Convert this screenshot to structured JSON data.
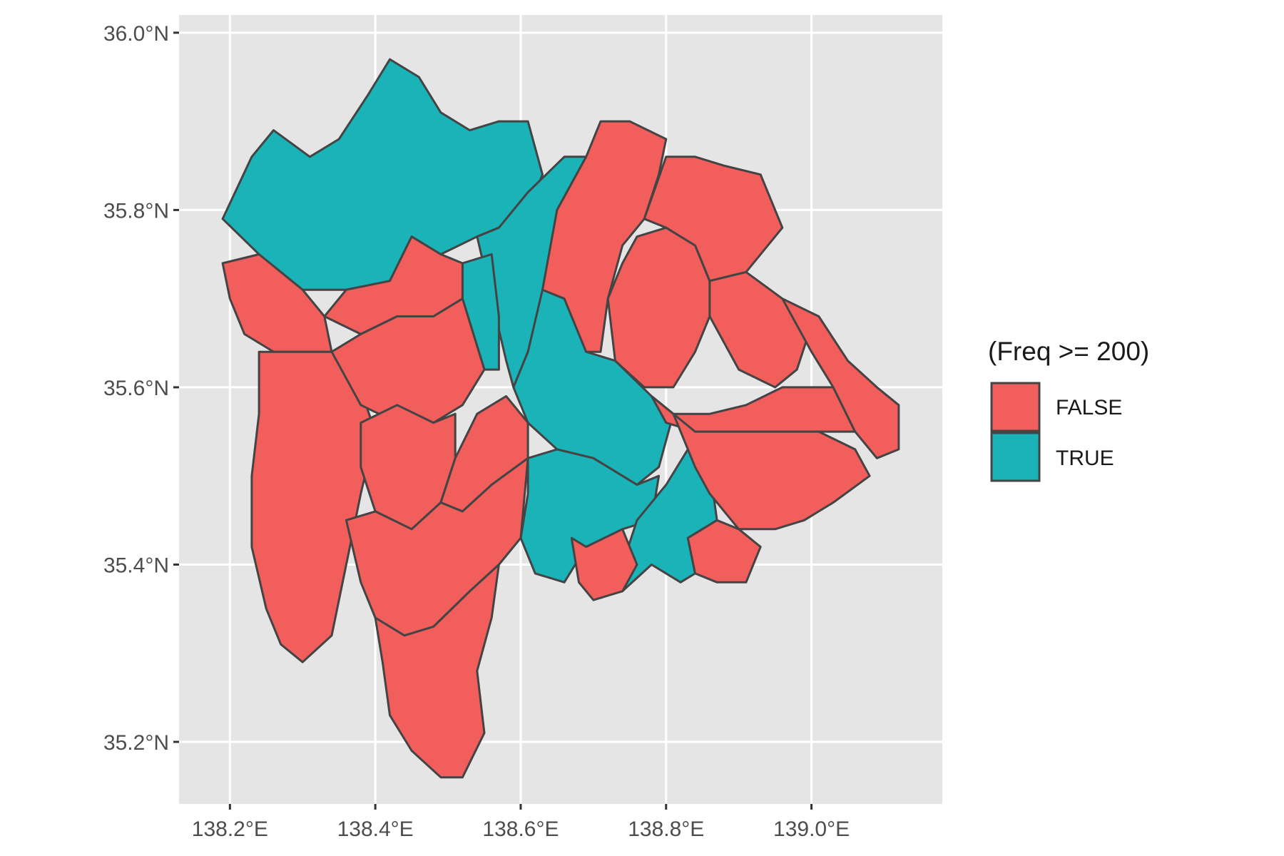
{
  "colors": {
    "false_fill": "#F25E5B",
    "true_fill": "#1AB3B7",
    "border": "#444444",
    "panel_bg": "#E5E5E5",
    "grid": "#FFFFFF"
  },
  "legend": {
    "title": "(Freq >= 200)",
    "items": [
      {
        "label": "FALSE",
        "color": "#F25E5B"
      },
      {
        "label": "TRUE",
        "color": "#1AB3B7"
      }
    ]
  },
  "chart_data": {
    "type": "choropleth",
    "xlim": [
      138.13,
      139.18
    ],
    "ylim": [
      35.13,
      36.02
    ],
    "x_ticks": [
      138.2,
      138.4,
      138.6,
      138.8,
      139.0
    ],
    "x_tick_labels": [
      "138.2°E",
      "138.4°E",
      "138.6°E",
      "138.8°E",
      "139.0°E"
    ],
    "y_ticks": [
      35.2,
      35.4,
      35.6,
      35.8,
      36.0
    ],
    "y_tick_labels": [
      "35.2°N",
      "35.4°N",
      "35.6°N",
      "35.8°N",
      "36.0°N"
    ],
    "regions": [
      {
        "category": "TRUE",
        "coords": [
          [
            138.19,
            35.79
          ],
          [
            138.23,
            35.86
          ],
          [
            138.26,
            35.89
          ],
          [
            138.31,
            35.86
          ],
          [
            138.35,
            35.88
          ],
          [
            138.39,
            35.93
          ],
          [
            138.42,
            35.97
          ],
          [
            138.46,
            35.95
          ],
          [
            138.49,
            35.91
          ],
          [
            138.53,
            35.89
          ],
          [
            138.57,
            35.9
          ],
          [
            138.61,
            35.9
          ],
          [
            138.63,
            35.84
          ],
          [
            138.61,
            35.8
          ],
          [
            138.57,
            35.78
          ],
          [
            138.54,
            35.77
          ],
          [
            138.49,
            35.75
          ],
          [
            138.45,
            35.77
          ],
          [
            138.42,
            35.72
          ],
          [
            138.36,
            35.71
          ],
          [
            138.3,
            35.71
          ],
          [
            138.24,
            35.75
          ],
          [
            138.19,
            35.79
          ]
        ]
      },
      {
        "category": "TRUE",
        "coords": [
          [
            138.61,
            35.82
          ],
          [
            138.66,
            35.86
          ],
          [
            138.69,
            35.86
          ],
          [
            138.65,
            35.8
          ],
          [
            138.63,
            35.7
          ],
          [
            138.61,
            35.64
          ],
          [
            138.59,
            35.6
          ],
          [
            138.58,
            35.63
          ],
          [
            138.56,
            35.7
          ],
          [
            138.54,
            35.77
          ],
          [
            138.57,
            35.78
          ],
          [
            138.61,
            35.82
          ]
        ]
      },
      {
        "category": "TRUE",
        "coords": [
          [
            138.52,
            35.74
          ],
          [
            138.56,
            35.75
          ],
          [
            138.57,
            35.68
          ],
          [
            138.57,
            35.62
          ],
          [
            138.55,
            35.62
          ],
          [
            138.52,
            35.7
          ],
          [
            138.52,
            35.74
          ]
        ]
      },
      {
        "category": "TRUE",
        "coords": [
          [
            138.63,
            35.71
          ],
          [
            138.66,
            35.7
          ],
          [
            138.69,
            35.64
          ],
          [
            138.73,
            35.63
          ],
          [
            138.78,
            35.59
          ],
          [
            138.81,
            35.57
          ],
          [
            138.79,
            35.51
          ],
          [
            138.76,
            35.49
          ],
          [
            138.7,
            35.52
          ],
          [
            138.65,
            35.53
          ],
          [
            138.61,
            35.56
          ],
          [
            138.59,
            35.6
          ],
          [
            138.61,
            35.64
          ],
          [
            138.63,
            35.71
          ]
        ]
      },
      {
        "category": "TRUE",
        "coords": [
          [
            138.61,
            35.52
          ],
          [
            138.65,
            35.53
          ],
          [
            138.7,
            35.52
          ],
          [
            138.76,
            35.49
          ],
          [
            138.79,
            35.5
          ],
          [
            138.78,
            35.45
          ],
          [
            138.74,
            35.44
          ],
          [
            138.69,
            35.42
          ],
          [
            138.66,
            35.38
          ],
          [
            138.62,
            35.39
          ],
          [
            138.6,
            35.43
          ],
          [
            138.61,
            35.48
          ],
          [
            138.61,
            35.52
          ]
        ]
      },
      {
        "category": "TRUE",
        "coords": [
          [
            138.76,
            35.45
          ],
          [
            138.8,
            35.49
          ],
          [
            138.83,
            35.53
          ],
          [
            138.86,
            35.51
          ],
          [
            138.87,
            35.45
          ],
          [
            138.83,
            35.43
          ],
          [
            138.84,
            35.39
          ],
          [
            138.82,
            35.38
          ],
          [
            138.78,
            35.4
          ],
          [
            138.74,
            35.37
          ],
          [
            138.74,
            35.4
          ],
          [
            138.76,
            35.45
          ]
        ]
      },
      {
        "category": "FALSE",
        "coords": [
          [
            138.19,
            35.74
          ],
          [
            138.24,
            35.75
          ],
          [
            138.3,
            35.71
          ],
          [
            138.33,
            35.68
          ],
          [
            138.34,
            35.64
          ],
          [
            138.3,
            35.64
          ],
          [
            138.26,
            35.64
          ],
          [
            138.22,
            35.66
          ],
          [
            138.2,
            35.7
          ],
          [
            138.19,
            35.74
          ]
        ]
      },
      {
        "category": "FALSE",
        "coords": [
          [
            138.24,
            35.64
          ],
          [
            138.3,
            35.64
          ],
          [
            138.34,
            35.64
          ],
          [
            138.37,
            35.62
          ],
          [
            138.4,
            35.55
          ],
          [
            138.38,
            35.48
          ],
          [
            138.36,
            35.4
          ],
          [
            138.34,
            35.32
          ],
          [
            138.3,
            35.29
          ],
          [
            138.27,
            35.31
          ],
          [
            138.25,
            35.35
          ],
          [
            138.23,
            35.42
          ],
          [
            138.23,
            35.5
          ],
          [
            138.24,
            35.57
          ],
          [
            138.24,
            35.64
          ]
        ]
      },
      {
        "category": "FALSE",
        "coords": [
          [
            138.33,
            35.68
          ],
          [
            138.36,
            35.71
          ],
          [
            138.42,
            35.72
          ],
          [
            138.45,
            35.77
          ],
          [
            138.49,
            35.75
          ],
          [
            138.52,
            35.74
          ],
          [
            138.52,
            35.7
          ],
          [
            138.48,
            35.68
          ],
          [
            138.43,
            35.68
          ],
          [
            138.38,
            35.66
          ],
          [
            138.33,
            35.68
          ]
        ]
      },
      {
        "category": "FALSE",
        "coords": [
          [
            138.34,
            35.64
          ],
          [
            138.38,
            35.66
          ],
          [
            138.43,
            35.68
          ],
          [
            138.48,
            35.68
          ],
          [
            138.52,
            35.7
          ],
          [
            138.55,
            35.62
          ],
          [
            138.52,
            35.58
          ],
          [
            138.48,
            35.56
          ],
          [
            138.43,
            35.56
          ],
          [
            138.38,
            35.58
          ],
          [
            138.34,
            35.64
          ]
        ]
      },
      {
        "category": "FALSE",
        "coords": [
          [
            138.38,
            35.56
          ],
          [
            138.43,
            35.58
          ],
          [
            138.48,
            35.56
          ],
          [
            138.51,
            35.57
          ],
          [
            138.51,
            35.52
          ],
          [
            138.49,
            35.47
          ],
          [
            138.45,
            35.44
          ],
          [
            138.4,
            35.46
          ],
          [
            138.38,
            35.51
          ],
          [
            138.38,
            35.56
          ]
        ]
      },
      {
        "category": "FALSE",
        "coords": [
          [
            138.49,
            35.47
          ],
          [
            138.51,
            35.52
          ],
          [
            138.54,
            35.57
          ],
          [
            138.58,
            35.59
          ],
          [
            138.61,
            35.56
          ],
          [
            138.61,
            35.52
          ],
          [
            138.56,
            35.49
          ],
          [
            138.52,
            35.46
          ],
          [
            138.49,
            35.47
          ]
        ]
      },
      {
        "category": "FALSE",
        "coords": [
          [
            138.36,
            35.45
          ],
          [
            138.4,
            35.46
          ],
          [
            138.45,
            35.44
          ],
          [
            138.49,
            35.47
          ],
          [
            138.52,
            35.46
          ],
          [
            138.56,
            35.49
          ],
          [
            138.61,
            35.52
          ],
          [
            138.6,
            35.43
          ],
          [
            138.57,
            35.4
          ],
          [
            138.53,
            35.37
          ],
          [
            138.48,
            35.33
          ],
          [
            138.44,
            35.32
          ],
          [
            138.4,
            35.34
          ],
          [
            138.38,
            35.38
          ],
          [
            138.36,
            35.45
          ]
        ]
      },
      {
        "category": "FALSE",
        "coords": [
          [
            138.4,
            35.34
          ],
          [
            138.44,
            35.32
          ],
          [
            138.48,
            35.33
          ],
          [
            138.53,
            35.37
          ],
          [
            138.57,
            35.4
          ],
          [
            138.56,
            35.34
          ],
          [
            138.54,
            35.28
          ],
          [
            138.55,
            35.21
          ],
          [
            138.52,
            35.16
          ],
          [
            138.49,
            35.16
          ],
          [
            138.45,
            35.19
          ],
          [
            138.42,
            35.23
          ],
          [
            138.41,
            35.29
          ],
          [
            138.4,
            35.34
          ]
        ]
      },
      {
        "category": "FALSE",
        "coords": [
          [
            138.63,
            35.71
          ],
          [
            138.66,
            35.7
          ],
          [
            138.69,
            35.64
          ],
          [
            138.71,
            35.64
          ],
          [
            138.72,
            35.7
          ],
          [
            138.74,
            35.76
          ],
          [
            138.77,
            35.79
          ],
          [
            138.79,
            35.84
          ],
          [
            138.8,
            35.88
          ],
          [
            138.75,
            35.9
          ],
          [
            138.71,
            35.9
          ],
          [
            138.69,
            35.86
          ],
          [
            138.65,
            35.8
          ],
          [
            138.63,
            35.71
          ]
        ]
      },
      {
        "category": "FALSE",
        "coords": [
          [
            138.72,
            35.7
          ],
          [
            138.73,
            35.63
          ],
          [
            138.77,
            35.6
          ],
          [
            138.81,
            35.6
          ],
          [
            138.84,
            35.64
          ],
          [
            138.86,
            35.68
          ],
          [
            138.86,
            35.72
          ],
          [
            138.84,
            35.76
          ],
          [
            138.8,
            35.78
          ],
          [
            138.76,
            35.77
          ],
          [
            138.74,
            35.74
          ],
          [
            138.72,
            35.7
          ]
        ]
      },
      {
        "category": "FALSE",
        "coords": [
          [
            138.77,
            35.79
          ],
          [
            138.8,
            35.78
          ],
          [
            138.84,
            35.76
          ],
          [
            138.86,
            35.72
          ],
          [
            138.91,
            35.73
          ],
          [
            138.96,
            35.78
          ],
          [
            138.93,
            35.84
          ],
          [
            138.88,
            35.85
          ],
          [
            138.84,
            35.86
          ],
          [
            138.8,
            35.86
          ],
          [
            138.77,
            35.79
          ]
        ]
      },
      {
        "category": "FALSE",
        "coords": [
          [
            138.86,
            35.68
          ],
          [
            138.86,
            35.72
          ],
          [
            138.91,
            35.73
          ],
          [
            138.96,
            35.7
          ],
          [
            139.0,
            35.67
          ],
          [
            138.98,
            35.62
          ],
          [
            138.95,
            35.6
          ],
          [
            138.9,
            35.62
          ],
          [
            138.86,
            35.68
          ]
        ]
      },
      {
        "category": "FALSE",
        "coords": [
          [
            138.78,
            35.59
          ],
          [
            138.81,
            35.57
          ],
          [
            138.86,
            35.57
          ],
          [
            138.91,
            35.58
          ],
          [
            138.96,
            35.6
          ],
          [
            139.03,
            35.6
          ],
          [
            139.06,
            35.55
          ],
          [
            139.01,
            35.55
          ],
          [
            138.95,
            35.55
          ],
          [
            138.9,
            35.55
          ],
          [
            138.84,
            35.55
          ],
          [
            138.8,
            35.56
          ],
          [
            138.78,
            35.59
          ]
        ]
      },
      {
        "category": "FALSE",
        "coords": [
          [
            138.96,
            35.7
          ],
          [
            139.01,
            35.68
          ],
          [
            139.05,
            35.63
          ],
          [
            139.09,
            35.6
          ],
          [
            139.12,
            35.58
          ],
          [
            139.12,
            35.53
          ],
          [
            139.09,
            35.52
          ],
          [
            139.06,
            35.55
          ],
          [
            139.03,
            35.6
          ],
          [
            139.0,
            35.64
          ],
          [
            138.96,
            35.7
          ]
        ]
      },
      {
        "category": "FALSE",
        "coords": [
          [
            138.81,
            35.57
          ],
          [
            138.84,
            35.55
          ],
          [
            138.9,
            35.55
          ],
          [
            138.95,
            35.55
          ],
          [
            139.01,
            35.55
          ],
          [
            139.06,
            35.53
          ],
          [
            139.08,
            35.5
          ],
          [
            139.03,
            35.47
          ],
          [
            138.99,
            35.45
          ],
          [
            138.95,
            35.44
          ],
          [
            138.9,
            35.44
          ],
          [
            138.86,
            35.48
          ],
          [
            138.84,
            35.51
          ],
          [
            138.81,
            35.57
          ]
        ]
      },
      {
        "category": "FALSE",
        "coords": [
          [
            138.83,
            35.43
          ],
          [
            138.87,
            35.45
          ],
          [
            138.9,
            35.44
          ],
          [
            138.93,
            35.42
          ],
          [
            138.91,
            35.38
          ],
          [
            138.87,
            35.38
          ],
          [
            138.84,
            35.39
          ],
          [
            138.83,
            35.43
          ]
        ]
      },
      {
        "category": "FALSE",
        "coords": [
          [
            138.67,
            35.43
          ],
          [
            138.69,
            35.42
          ],
          [
            138.74,
            35.44
          ],
          [
            138.76,
            35.4
          ],
          [
            138.74,
            35.37
          ],
          [
            138.7,
            35.36
          ],
          [
            138.68,
            35.38
          ],
          [
            138.67,
            35.43
          ]
        ]
      }
    ]
  }
}
